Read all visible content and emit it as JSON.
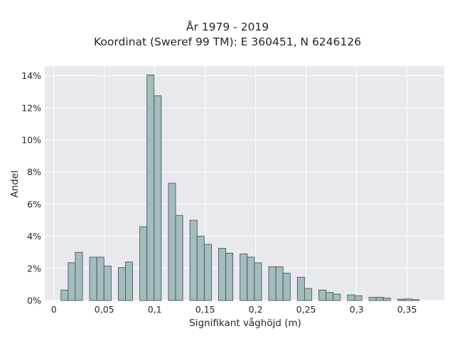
{
  "chart_data": {
    "type": "bar",
    "title": "År 1979 - 2019",
    "subtitle": "Koordinat (Sweref 99 TM): E 360451, N 6246126",
    "xlabel": "Signifikant våghöjd (m)",
    "ylabel": "Andel",
    "xlim": [
      -0.009,
      0.387
    ],
    "ylim": [
      0,
      14.6
    ],
    "grid": true,
    "bin_width": 0.0071,
    "x_ticks": [
      {
        "value": 0,
        "label": "0"
      },
      {
        "value": 0.05,
        "label": "0,05"
      },
      {
        "value": 0.1,
        "label": "0,1"
      },
      {
        "value": 0.15,
        "label": "0,15"
      },
      {
        "value": 0.2,
        "label": "0,2"
      },
      {
        "value": 0.25,
        "label": "0,25"
      },
      {
        "value": 0.3,
        "label": "0,3"
      },
      {
        "value": 0.35,
        "label": "0,35"
      }
    ],
    "y_ticks": [
      {
        "value": 0,
        "label": "0%"
      },
      {
        "value": 2,
        "label": "2%"
      },
      {
        "value": 4,
        "label": "4%"
      },
      {
        "value": 6,
        "label": "6%"
      },
      {
        "value": 8,
        "label": "8%"
      },
      {
        "value": 10,
        "label": "10%"
      },
      {
        "value": 12,
        "label": "12%"
      },
      {
        "value": 14,
        "label": "14%"
      }
    ],
    "bars": [
      {
        "x": 0.0106,
        "value": 0.65
      },
      {
        "x": 0.0177,
        "value": 2.35
      },
      {
        "x": 0.0248,
        "value": 3.0
      },
      {
        "x": 0.039,
        "value": 2.7
      },
      {
        "x": 0.0461,
        "value": 2.7
      },
      {
        "x": 0.0532,
        "value": 2.15
      },
      {
        "x": 0.0674,
        "value": 2.05
      },
      {
        "x": 0.0745,
        "value": 2.4
      },
      {
        "x": 0.0887,
        "value": 4.6
      },
      {
        "x": 0.0958,
        "value": 14.05
      },
      {
        "x": 0.1029,
        "value": 12.75
      },
      {
        "x": 0.1171,
        "value": 7.3
      },
      {
        "x": 0.1242,
        "value": 5.3
      },
      {
        "x": 0.1384,
        "value": 5.0
      },
      {
        "x": 0.1455,
        "value": 4.0
      },
      {
        "x": 0.1526,
        "value": 3.5
      },
      {
        "x": 0.1668,
        "value": 3.25
      },
      {
        "x": 0.1739,
        "value": 2.95
      },
      {
        "x": 0.1881,
        "value": 2.9
      },
      {
        "x": 0.1952,
        "value": 2.7
      },
      {
        "x": 0.2023,
        "value": 2.35
      },
      {
        "x": 0.2165,
        "value": 2.1
      },
      {
        "x": 0.2236,
        "value": 2.1
      },
      {
        "x": 0.2307,
        "value": 1.7
      },
      {
        "x": 0.2449,
        "value": 1.45
      },
      {
        "x": 0.252,
        "value": 0.75
      },
      {
        "x": 0.2662,
        "value": 0.65
      },
      {
        "x": 0.2733,
        "value": 0.5
      },
      {
        "x": 0.2804,
        "value": 0.4
      },
      {
        "x": 0.2946,
        "value": 0.35
      },
      {
        "x": 0.3017,
        "value": 0.3
      },
      {
        "x": 0.3159,
        "value": 0.2
      },
      {
        "x": 0.323,
        "value": 0.2
      },
      {
        "x": 0.3301,
        "value": 0.15
      },
      {
        "x": 0.3443,
        "value": 0.08
      },
      {
        "x": 0.3514,
        "value": 0.1
      },
      {
        "x": 0.3585,
        "value": 0.05
      }
    ],
    "colors": {
      "plot_bg": "#e8e8ef",
      "grid": "#ffffff",
      "bar_fill": "#a3bcbd",
      "bar_stroke": "#3e4a4a"
    }
  }
}
